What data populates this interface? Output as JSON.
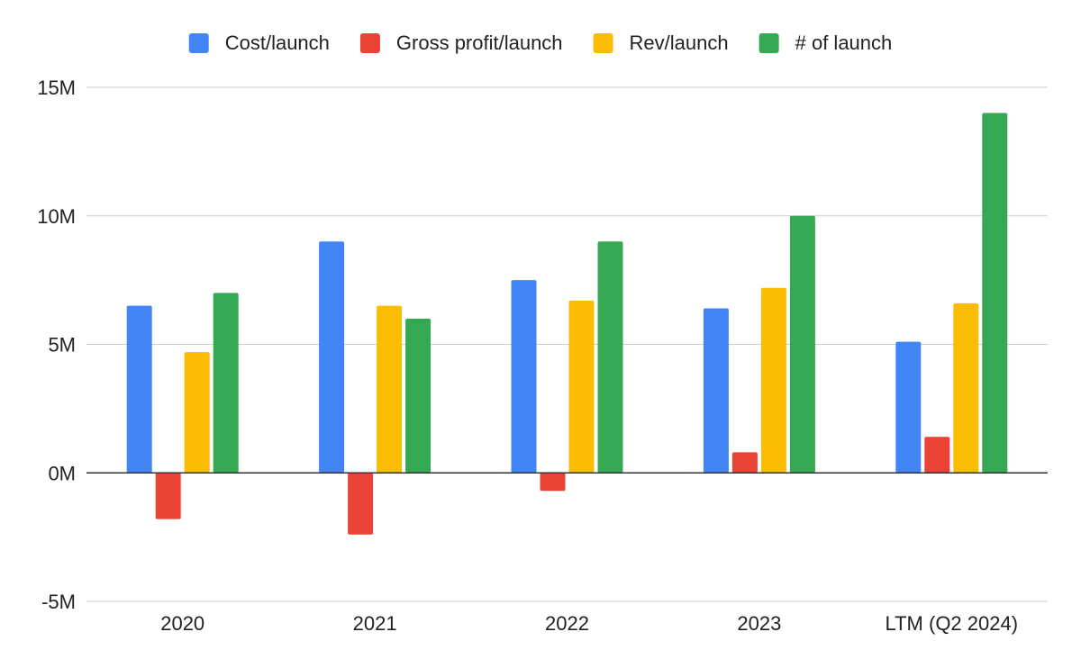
{
  "chart_data": {
    "type": "bar",
    "categories": [
      "2020",
      "2021",
      "2022",
      "2023",
      "LTM (Q2 2024)"
    ],
    "series": [
      {
        "name": "Cost/launch",
        "color": "#4285F4",
        "values": [
          6.5,
          9.0,
          7.5,
          6.4,
          5.1
        ]
      },
      {
        "name": "Gross profit/launch",
        "color": "#EA4335",
        "values": [
          -1.8,
          -2.4,
          -0.7,
          0.8,
          1.4
        ]
      },
      {
        "name": "Rev/launch",
        "color": "#FBBC04",
        "values": [
          4.7,
          6.5,
          6.7,
          7.2,
          6.6
        ]
      },
      {
        "name": "# of launch",
        "color": "#34A853",
        "values": [
          7.0,
          6.0,
          9.0,
          10.0,
          14.0
        ]
      }
    ],
    "yticks": [
      {
        "value": -5,
        "label": "-5M"
      },
      {
        "value": 0,
        "label": "0M"
      },
      {
        "value": 5,
        "label": "5M"
      },
      {
        "value": 10,
        "label": "10M"
      },
      {
        "value": 15,
        "label": "15M"
      }
    ],
    "ylim": [
      -5,
      15
    ],
    "grid": true,
    "legend_position": "top"
  }
}
